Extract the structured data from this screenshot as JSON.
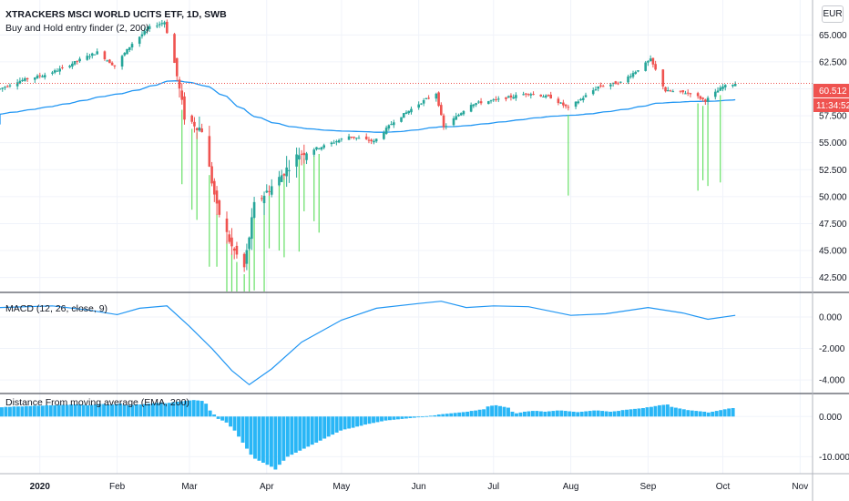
{
  "currency_button": "EUR",
  "panes": {
    "price": {
      "title": "XTRACKERS MSCI WORLD UCITS ETF, 1D, SWB",
      "indicator": "Buy and Hold entry finder (2, 200)"
    },
    "macd": {
      "title": "MACD (12, 26, close, 9)"
    },
    "distance": {
      "title": "Distance From moving average (EMA, 200)"
    }
  },
  "price_badges": {
    "last_price": "60.512",
    "countdown": "11:34:52"
  },
  "colors": {
    "up": "#26a69a",
    "down": "#ef5350",
    "ema": "#2196f3",
    "signal": "#66e066",
    "macd": "#2196f3",
    "distance": "#29b6f6",
    "badge_last": "#ef5350",
    "badge_countdown": "#ef5350",
    "dotted_line": "#ef5350"
  },
  "chart_data": [
    {
      "type": "candlestick",
      "title": "XTRACKERS MSCI WORLD UCITS ETF, 1D, SWB",
      "x_start": "2019-12-16",
      "x_end": "2020-11-06",
      "y_ticks": [
        "42.500",
        "45.000",
        "47.500",
        "50.000",
        "52.500",
        "55.000",
        "57.500",
        "60.000",
        "62.500",
        "65.000"
      ],
      "ylim": [
        41.2,
        67.9
      ],
      "closes": [
        [
          "2019-12-16",
          60.0
        ],
        [
          "2019-12-23",
          60.7
        ],
        [
          "2020-01-03",
          61.3
        ],
        [
          "2020-01-10",
          61.9
        ],
        [
          "2020-01-17",
          62.7
        ],
        [
          "2020-01-24",
          63.4
        ],
        [
          "2020-01-31",
          62.1
        ],
        [
          "2020-02-07",
          64.2
        ],
        [
          "2020-02-14",
          65.7
        ],
        [
          "2020-02-20",
          66.2
        ],
        [
          "2020-02-24",
          62.4
        ],
        [
          "2020-02-28",
          57.4
        ],
        [
          "2020-03-06",
          56.2
        ],
        [
          "2020-03-12",
          49.0
        ],
        [
          "2020-03-18",
          45.3
        ],
        [
          "2020-03-23",
          43.4
        ],
        [
          "2020-03-27",
          49.2
        ],
        [
          "2020-04-06",
          51.7
        ],
        [
          "2020-04-14",
          54.0
        ],
        [
          "2020-04-24",
          54.7
        ],
        [
          "2020-05-04",
          55.6
        ],
        [
          "2020-05-14",
          55.1
        ],
        [
          "2020-05-22",
          57.0
        ],
        [
          "2020-06-01",
          58.6
        ],
        [
          "2020-06-08",
          59.6
        ],
        [
          "2020-06-11",
          56.4
        ],
        [
          "2020-06-22",
          58.6
        ],
        [
          "2020-07-03",
          59.0
        ],
        [
          "2020-07-15",
          59.6
        ],
        [
          "2020-07-24",
          59.2
        ],
        [
          "2020-07-31",
          58.2
        ],
        [
          "2020-08-12",
          60.2
        ],
        [
          "2020-08-21",
          60.6
        ],
        [
          "2020-08-28",
          61.8
        ],
        [
          "2020-09-02",
          62.7
        ],
        [
          "2020-09-08",
          59.8
        ],
        [
          "2020-09-18",
          59.6
        ],
        [
          "2020-09-24",
          58.9
        ],
        [
          "2020-10-01",
          60.2
        ],
        [
          "2020-10-06",
          60.5
        ]
      ],
      "overlay_series": {
        "name": "EMA 200"
      },
      "signals": [
        "2020-02-27",
        "2020-03-02",
        "2020-03-04",
        "2020-03-09",
        "2020-03-12",
        "2020-03-16",
        "2020-03-18",
        "2020-03-20",
        "2020-03-23",
        "2020-03-25",
        "2020-03-27",
        "2020-03-31",
        "2020-04-02",
        "2020-04-06",
        "2020-04-08",
        "2020-04-14",
        "2020-04-16",
        "2020-04-20",
        "2020-04-22",
        "2020-07-31",
        "2020-09-21",
        "2020-09-23",
        "2020-09-25",
        "2020-09-30"
      ],
      "last_price_line": 60.512
    },
    {
      "type": "line",
      "title": "MACD (12, 26, close, 9)",
      "y_ticks": [
        "0.000",
        "-2.000",
        "-4.000"
      ],
      "ylim": [
        -4.8,
        1.5
      ],
      "points": [
        [
          "2019-12-16",
          0.6
        ],
        [
          "2020-01-06",
          0.7
        ],
        [
          "2020-01-20",
          0.45
        ],
        [
          "2020-02-01",
          0.15
        ],
        [
          "2020-02-10",
          0.55
        ],
        [
          "2020-02-21",
          0.7
        ],
        [
          "2020-03-01",
          -0.6
        ],
        [
          "2020-03-10",
          -2.0
        ],
        [
          "2020-03-18",
          -3.4
        ],
        [
          "2020-03-25",
          -4.3
        ],
        [
          "2020-04-03",
          -3.3
        ],
        [
          "2020-04-15",
          -1.6
        ],
        [
          "2020-05-01",
          -0.2
        ],
        [
          "2020-05-15",
          0.55
        ],
        [
          "2020-06-01",
          0.85
        ],
        [
          "2020-06-10",
          1.0
        ],
        [
          "2020-06-20",
          0.6
        ],
        [
          "2020-07-01",
          0.7
        ],
        [
          "2020-07-15",
          0.65
        ],
        [
          "2020-08-01",
          0.1
        ],
        [
          "2020-08-15",
          0.2
        ],
        [
          "2020-09-01",
          0.6
        ],
        [
          "2020-09-15",
          0.25
        ],
        [
          "2020-09-25",
          -0.15
        ],
        [
          "2020-10-06",
          0.1
        ]
      ]
    },
    {
      "type": "bar",
      "title": "Distance From moving average (EMA, 200)",
      "y_ticks": [
        "0.000",
        "-10.000"
      ],
      "ylim": [
        -14.0,
        5.5
      ],
      "values": [
        2.3,
        2.4,
        2.4,
        2.5,
        2.5,
        2.5,
        2.6,
        2.6,
        2.7,
        2.7,
        2.7,
        2.8,
        2.8,
        2.8,
        2.9,
        2.9,
        2.9,
        3.0,
        3.0,
        3.0,
        2.9,
        2.8,
        2.9,
        3.0,
        3.1,
        3.1,
        3.0,
        3.0,
        3.1,
        3.2,
        2.9,
        2.8,
        2.9,
        3.0,
        3.0,
        3.1,
        3.2,
        3.3,
        3.4,
        3.5,
        3.3,
        3.4,
        3.6,
        3.7,
        3.8,
        3.9,
        4.0,
        4.1,
        4.0,
        3.9,
        3.2,
        1.5,
        0.5,
        -0.6,
        -1.0,
        -1.5,
        -2.5,
        -3.5,
        -5.0,
        -6.5,
        -8.0,
        -9.5,
        -10.5,
        -11.0,
        -11.5,
        -12.0,
        -12.5,
        -13.2,
        -12.0,
        -11.0,
        -10.0,
        -9.5,
        -9.0,
        -8.5,
        -8.0,
        -7.5,
        -7.0,
        -6.5,
        -6.0,
        -5.5,
        -5.0,
        -4.5,
        -4.0,
        -3.5,
        -3.2,
        -3.0,
        -2.8,
        -2.5,
        -2.3,
        -2.0,
        -1.8,
        -1.6,
        -1.4,
        -1.2,
        -1.0,
        -0.9,
        -0.8,
        -0.7,
        -0.6,
        -0.5,
        -0.4,
        -0.3,
        -0.2,
        -0.1,
        0.1,
        0.2,
        0.3,
        0.5,
        0.6,
        0.7,
        0.8,
        0.9,
        1.0,
        1.1,
        1.2,
        1.4,
        1.5,
        1.7,
        1.8,
        2.5,
        2.7,
        2.8,
        2.6,
        2.4,
        2.2,
        1.2,
        0.8,
        1.0,
        1.2,
        1.3,
        1.4,
        1.4,
        1.3,
        1.2,
        1.3,
        1.4,
        1.5,
        1.5,
        1.4,
        1.3,
        1.2,
        1.1,
        1.2,
        1.3,
        1.4,
        1.5,
        1.5,
        1.4,
        1.3,
        1.2,
        1.3,
        1.4,
        1.6,
        1.7,
        1.8,
        1.9,
        2.0,
        2.1,
        2.3,
        2.4,
        2.6,
        2.8,
        2.9,
        3.0,
        2.4,
        2.2,
        2.0,
        1.8,
        1.6,
        1.5,
        1.4,
        1.3,
        1.2,
        1.0,
        1.2,
        1.4,
        1.6,
        1.8,
        2.0,
        2.1
      ]
    }
  ],
  "x_axis": {
    "labels": [
      {
        "text": "2020",
        "date": "2020-01-01"
      },
      {
        "text": "Feb",
        "date": "2020-02-01"
      },
      {
        "text": "Mar",
        "date": "2020-03-01"
      },
      {
        "text": "Apr",
        "date": "2020-04-01"
      },
      {
        "text": "May",
        "date": "2020-05-01"
      },
      {
        "text": "Jun",
        "date": "2020-06-01"
      },
      {
        "text": "Jul",
        "date": "2020-07-01"
      },
      {
        "text": "Aug",
        "date": "2020-08-01"
      },
      {
        "text": "Sep",
        "date": "2020-09-01"
      },
      {
        "text": "Oct",
        "date": "2020-10-01"
      },
      {
        "text": "Nov",
        "date": "2020-11-01"
      }
    ]
  }
}
